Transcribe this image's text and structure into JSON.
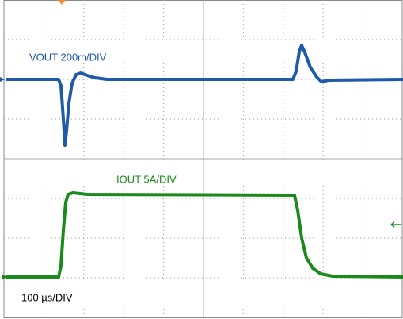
{
  "chart_data": {
    "type": "scope",
    "annotations": [
      "VOUT 200m/DIV",
      "IOUT 5A/DIV",
      "100 µs/DIV"
    ]
  }
}
